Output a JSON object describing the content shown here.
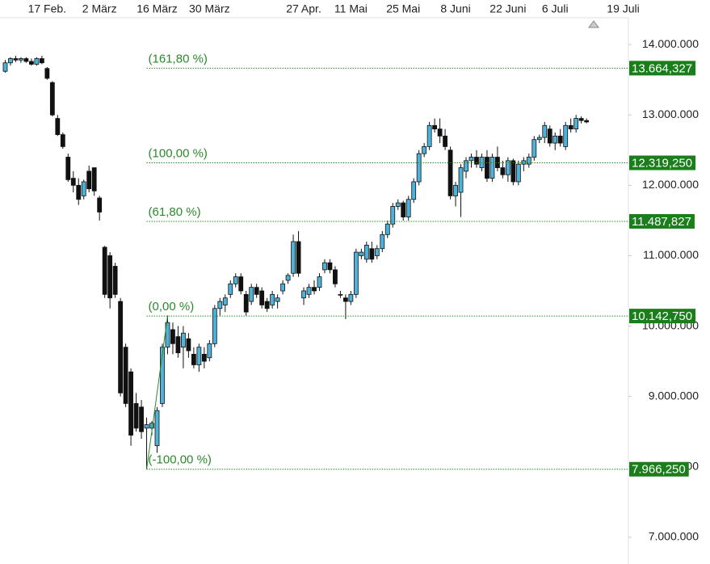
{
  "chart_data": {
    "type": "candlestick",
    "xlim": [
      -1,
      119
    ],
    "xticks": [
      {
        "value": 8,
        "label": "17 Feb."
      },
      {
        "value": 18,
        "label": "2 März"
      },
      {
        "value": 29,
        "label": "16 März"
      },
      {
        "value": 39,
        "label": "30 März"
      },
      {
        "value": 57,
        "label": "27 Apr."
      },
      {
        "value": 66,
        "label": "11 Mai"
      },
      {
        "value": 76,
        "label": "25 Mai"
      },
      {
        "value": 86,
        "label": "8 Juni"
      },
      {
        "value": 96,
        "label": "22 Juni"
      },
      {
        "value": 105,
        "label": "6 Juli"
      },
      {
        "value": 118,
        "label": "19 Juli"
      }
    ],
    "ylim": [
      6620000,
      14380000
    ],
    "yticks": [
      {
        "value": 7000000,
        "label": "7.000.000"
      },
      {
        "value": 8000000,
        "label": "8.000.000"
      },
      {
        "value": 9000000,
        "label": "9.000.000"
      },
      {
        "value": 10000000,
        "label": "10.000.000"
      },
      {
        "value": 11000000,
        "label": "11.000.000"
      },
      {
        "value": 12000000,
        "label": "12.000.000"
      },
      {
        "value": 13000000,
        "label": "13.000.000"
      },
      {
        "value": 14000000,
        "label": "14.000.000"
      }
    ],
    "series": [
      {
        "up_color": "#4fb3d9",
        "down_color": "#111111",
        "open": [
          13620000,
          13740000,
          13800000,
          13780000,
          13800000,
          13760000,
          13720000,
          13800000,
          13660000,
          13460000,
          12950000,
          12720000,
          12400000,
          12100000,
          12000000,
          11850000,
          12200000,
          12250000,
          11820000,
          11120000,
          11000000,
          10850000,
          10350000,
          9700000,
          9350000,
          8900000,
          8850000,
          8550000,
          8550000,
          8300000,
          8900000,
          9700000,
          9950000,
          9850000,
          9700000,
          9820000,
          9600000,
          9450000,
          9600000,
          9550000,
          9750000,
          10250000,
          10300000,
          10450000,
          10600000,
          10700000,
          10450000,
          10350000,
          10550000,
          10500000,
          10350000,
          10300000,
          10350000,
          10500000,
          10650000,
          10750000,
          11200000,
          10400000,
          10450000,
          10550000,
          10550000,
          10800000,
          10900000,
          10800000,
          10450000,
          10400000,
          10350000,
          10450000,
          11000000,
          10950000,
          11100000,
          11000000,
          11100000,
          11300000,
          11450000,
          11700000,
          11750000,
          11550000,
          11800000,
          12050000,
          12450000,
          12550000,
          12850000,
          12800000,
          12700000,
          12500000,
          11850000,
          11900000,
          12200000,
          12350000,
          12400000,
          12250000,
          12400000,
          12100000,
          12400000,
          12250000,
          12150000,
          12350000,
          12050000,
          12300000,
          12300000,
          12400000,
          12650000,
          12680000,
          12800000,
          12600000,
          12700000,
          12550000,
          12850000,
          12800000,
          12950000,
          12920000
        ],
        "high": [
          13780000,
          13820000,
          13840000,
          13820000,
          13820000,
          13800000,
          13820000,
          13840000,
          13680000,
          13480000,
          13000000,
          12750000,
          12450000,
          12200000,
          12100000,
          12080000,
          12280000,
          12250000,
          11850000,
          11140000,
          11050000,
          10900000,
          10400000,
          9750000,
          9400000,
          9050000,
          8950000,
          8700000,
          8650000,
          8850000,
          9750000,
          10150000,
          10050000,
          10000000,
          10000000,
          9900000,
          9700000,
          9750000,
          9700000,
          9800000,
          10300000,
          10400000,
          10450000,
          10650000,
          10750000,
          10750000,
          10500000,
          10600000,
          10600000,
          10550000,
          10400000,
          10500000,
          10450000,
          10650000,
          10750000,
          11300000,
          11350000,
          10550000,
          10600000,
          10650000,
          10750000,
          10950000,
          10950000,
          10850000,
          10500000,
          10450000,
          10500000,
          11100000,
          11100000,
          11200000,
          11200000,
          11150000,
          11350000,
          11500000,
          11750000,
          11800000,
          11780000,
          11850000,
          12100000,
          12500000,
          12600000,
          12900000,
          12950000,
          12950000,
          12800000,
          12550000,
          12050000,
          12300000,
          12400000,
          12450000,
          12500000,
          12450000,
          12500000,
          12450000,
          12550000,
          12350000,
          12400000,
          12380000,
          12350000,
          12400000,
          12450000,
          12700000,
          12720000,
          12900000,
          12850000,
          12750000,
          12800000,
          12900000,
          12950000,
          13000000,
          12980000,
          12950000
        ],
        "low": [
          13600000,
          13700000,
          13750000,
          13740000,
          13740000,
          13700000,
          13700000,
          13720000,
          13500000,
          12980000,
          12700000,
          12520000,
          12050000,
          11900000,
          11720000,
          11800000,
          11900000,
          11850000,
          11500000,
          10400000,
          10250000,
          10400000,
          9000000,
          8850000,
          8300000,
          8500000,
          8400000,
          7966250,
          8450000,
          8200000,
          8850000,
          9600000,
          9600000,
          9550000,
          9400000,
          9550000,
          9400000,
          9350000,
          9400000,
          9500000,
          9700000,
          10150000,
          10200000,
          10400000,
          10550000,
          10450000,
          10150000,
          10300000,
          10400000,
          10250000,
          10200000,
          10250000,
          10250000,
          10450000,
          10600000,
          10700000,
          10700000,
          10300000,
          10400000,
          10450000,
          10500000,
          10750000,
          10750000,
          10550000,
          10400000,
          10100000,
          10300000,
          10400000,
          10950000,
          10900000,
          10900000,
          10950000,
          11050000,
          11250000,
          11400000,
          11650000,
          11500000,
          11500000,
          11750000,
          12000000,
          12400000,
          12500000,
          12750000,
          12600000,
          12500000,
          11800000,
          11700000,
          11550000,
          12100000,
          12250000,
          12250000,
          12200000,
          12050000,
          12050000,
          12200000,
          12100000,
          12050000,
          12000000,
          12000000,
          12200000,
          12250000,
          12350000,
          12600000,
          12600000,
          12550000,
          12500000,
          12550000,
          12500000,
          12750000,
          12750000,
          12880000,
          12880000
        ],
        "close": [
          13740000,
          13800000,
          13780000,
          13800000,
          13760000,
          13720000,
          13800000,
          13740000,
          13520000,
          13000000,
          12720000,
          12550000,
          12080000,
          12000000,
          11800000,
          12050000,
          11950000,
          11920000,
          11620000,
          10450000,
          10400000,
          10450000,
          9050000,
          8900000,
          8450000,
          8550000,
          8500000,
          8600000,
          8620000,
          8800000,
          9700000,
          10050000,
          9750000,
          9620000,
          9900000,
          9650000,
          9450000,
          9700000,
          9500000,
          9750000,
          10250000,
          10350000,
          10400000,
          10600000,
          10700000,
          10500000,
          10200000,
          10550000,
          10450000,
          10300000,
          10250000,
          10450000,
          10400000,
          10600000,
          10720000,
          11200000,
          10750000,
          10500000,
          10550000,
          10500000,
          10700000,
          10900000,
          10800000,
          10600000,
          10450000,
          10350000,
          10450000,
          11050000,
          11050000,
          11150000,
          10950000,
          11100000,
          11300000,
          11450000,
          11700000,
          11750000,
          11550000,
          11800000,
          12050000,
          12450000,
          12550000,
          12850000,
          12800000,
          12700000,
          12550000,
          11850000,
          12000000,
          12250000,
          12350000,
          12400000,
          12300000,
          12400000,
          12100000,
          12400000,
          12250000,
          12150000,
          12350000,
          12050000,
          12300000,
          12350000,
          12400000,
          12650000,
          12680000,
          12850000,
          12600000,
          12700000,
          12600000,
          12850000,
          12800000,
          12950000,
          12920000,
          12900000
        ]
      }
    ],
    "fibonacci": {
      "color": "#2a8a2a",
      "box_color": "#1a7f1a",
      "start": 27,
      "swing": 31,
      "levels": [
        {
          "label": "(161,80 %)",
          "value": 13664327,
          "value_label": "13.664,327"
        },
        {
          "label": "(100,00 %)",
          "value": 12319250,
          "value_label": "12.319,250"
        },
        {
          "label": "(61,80 %)",
          "value": 11487827,
          "value_label": "11.487,827"
        },
        {
          "label": "(0,00 %)",
          "value": 10142750,
          "value_label": "10.142,750"
        },
        {
          "label": "(-100,00 %)",
          "value": 7966250,
          "value_label": "7.966,250"
        }
      ]
    }
  }
}
